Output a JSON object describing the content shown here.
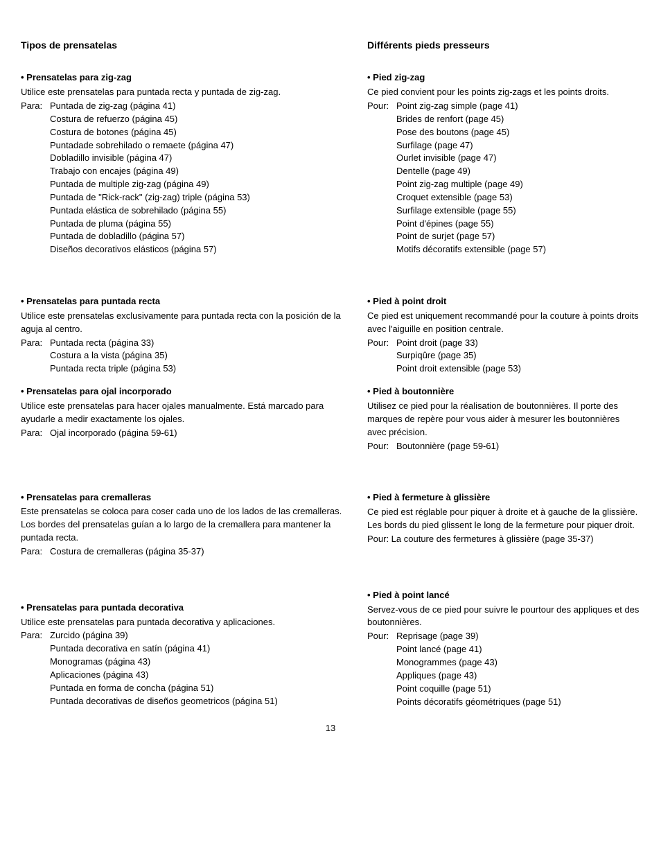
{
  "pageNumber": "13",
  "left": {
    "title": "Tipos de prensatelas",
    "sections": [
      {
        "heading": "• Prensatelas para zig-zag",
        "desc": "Utilice este prensatelas para puntada recta y puntada de zig-zag.",
        "label": "Para:",
        "items": [
          "Puntada de zig-zag (página 41)",
          "Costura de refuerzo (página 45)",
          "Costura de botones (página 45)",
          "Puntadade sobrehilado o remaete (página 47)",
          "Dobladillo invisible (página 47)",
          "Trabajo con encajes (página 49)",
          "Puntada de multiple zig-zag (página 49)",
          "Puntada de \"Rick-rack\" (zig-zag) triple (página 53)",
          "Puntada elástica de sobrehilado (página 55)",
          "Puntada de pluma (página 55)",
          "Puntada de dobladillo (página 57)",
          "Diseños decorativos elásticos (página 57)"
        ],
        "gapAfter": 56
      },
      {
        "heading": "• Prensatelas para puntada recta",
        "desc": "Utilice este prensatelas exclusivamente para puntada recta con la posición de la aguja al centro.",
        "label": "Para:",
        "items": [
          "Puntada recta (página 33)",
          "Costura a la vista (página 35)",
          "Puntada recta triple (página 53)"
        ],
        "gapAfter": 14
      },
      {
        "heading": "• Prensatelas para ojal incorporado",
        "desc": "Utilice este prensatelas para hacer ojales manualmente. Está marcado para ayudarle a medir exactamente los ojales.",
        "label": "Para:",
        "items": [
          "Ojal incorporado (página 59-61)"
        ],
        "gapAfter": 74
      },
      {
        "heading": "• Prensatelas para cremalleras",
        "desc": "Este prensatelas se coloca para coser cada uno de los lados de las cremalleras. Los bordes del prensatelas guían a lo largo de la cremallera para mantener la puntada recta.",
        "label": "Para:",
        "items": [
          "Costura de cremalleras (página 35-37)"
        ],
        "gapAfter": 62
      },
      {
        "heading": "• Prensatelas para puntada decorativa",
        "desc": "Utilice este prensatelas para puntada decorativa y aplicaciones.",
        "label": "Para:",
        "items": [
          "Zurcido (página 39)",
          "Puntada decorativa en satín (página 41)",
          "Monogramas (página 43)",
          "Aplicaciones (página 43)",
          "Puntada en forma de concha (página 51)",
          "Puntada decorativas de diseños geometricos (página 51)"
        ],
        "gapAfter": 10
      }
    ]
  },
  "right": {
    "title": "Différents pieds presseurs",
    "sections": [
      {
        "heading": "• Pied zig-zag",
        "desc": "Ce pied convient pour les points zig-zags et les points droits.",
        "label": "Pour:",
        "items": [
          "Point zig-zag simple (page 41)",
          "Brides de renfort (page 45)",
          "Pose des boutons (page 45)",
          "Surfilage (page 47)",
          "Ourlet invisible (page 47)",
          "Dentelle (page 49)",
          "Point zig-zag multiple (page 49)",
          "Croquet extensible (page 53)",
          "Surfilage extensible (page 55)",
          "Point d'épines (page 55)",
          "Point de surjet (page 57)",
          "Motifs décoratifs extensible (page 57)"
        ],
        "gapAfter": 56
      },
      {
        "heading": "• Pied à point droit",
        "desc": "Ce pied est uniquement recommandé pour la couture à points droits avec l'aiguille en position centrale.",
        "label": "Pour:",
        "items": [
          "Point droit (page 33)",
          "Surpiqûre (page 35)",
          "Point droit extensible (page 53)"
        ],
        "gapAfter": 14
      },
      {
        "heading": "• Pied à boutonnière",
        "desc": "Utilisez ce pied pour la réalisation de boutonnières. Il porte des marques de repère pour vous aider à mesurer les boutonnières avec précision.",
        "label": "Pour:",
        "items": [
          "Boutonnière (page 59-61)"
        ],
        "gapAfter": 56
      },
      {
        "heading": "• Pied à fermeture à glissière",
        "desc": "Ce pied est réglable pour piquer à droite et à gauche de la glissière. Les bords du pied glissent le long de la fermeture pour piquer droit.",
        "label": "",
        "items": [
          "Pour: La couture des fermetures à glissière (page 35-37)"
        ],
        "inline": true,
        "gapAfter": 62
      },
      {
        "heading": "• Pied à point lancé",
        "desc": "Servez-vous de ce pied pour suivre le pourtour des appliques et des boutonnières.",
        "label": "Pour:",
        "items": [
          "Reprisage (page 39)",
          "Point lancé (page 41)",
          "Monogrammes (page 43)",
          "Appliques (page 43)",
          "Point coquille (page 51)",
          "Points décoratifs géométriques (page 51)"
        ],
        "gapAfter": 10
      }
    ]
  }
}
